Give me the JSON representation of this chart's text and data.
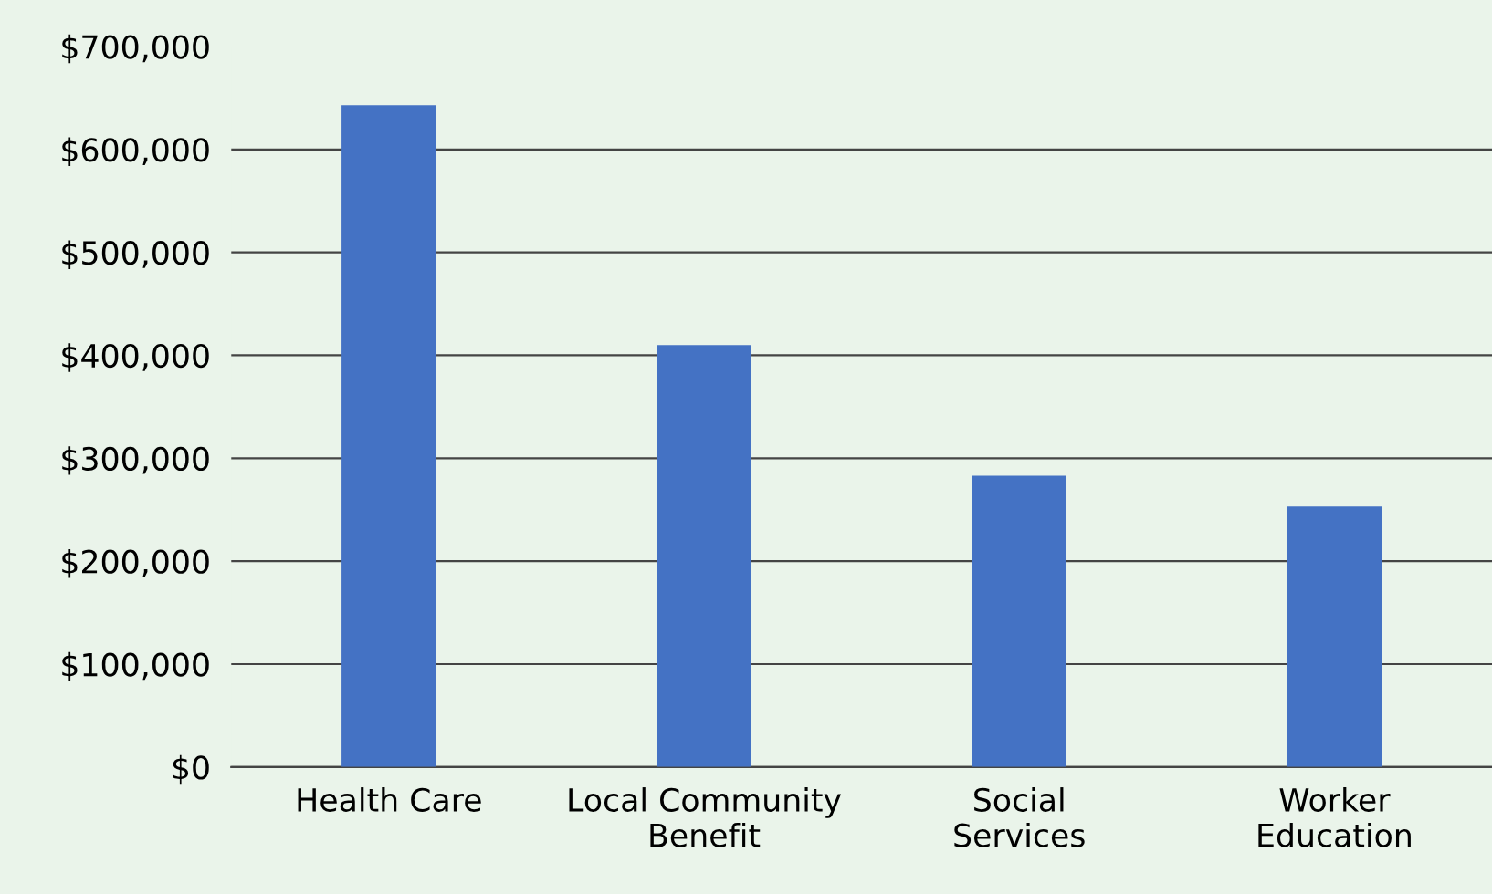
{
  "chart_data": {
    "type": "bar",
    "categories": [
      "Health Care",
      "Local Community Benefit",
      "Social Services",
      "Worker Education"
    ],
    "values": [
      643000,
      410000,
      283000,
      253000
    ],
    "color": "#4472c4",
    "ylim": [
      0,
      700000
    ],
    "yticks": [
      {
        "value": 0,
        "label": "$0"
      },
      {
        "value": 100000,
        "label": "$100,000"
      },
      {
        "value": 200000,
        "label": "$200,000"
      },
      {
        "value": 300000,
        "label": "$300,000"
      },
      {
        "value": 400000,
        "label": "$400,000"
      },
      {
        "value": 500000,
        "label": "$500,000"
      },
      {
        "value": 600000,
        "label": "$600,000"
      },
      {
        "value": 700000,
        "label": "$700,000"
      }
    ],
    "grid": "y",
    "legend": false
  }
}
